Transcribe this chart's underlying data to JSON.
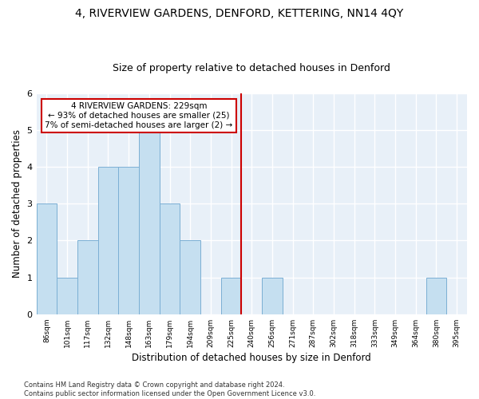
{
  "title": "4, RIVERVIEW GARDENS, DENFORD, KETTERING, NN14 4QY",
  "subtitle": "Size of property relative to detached houses in Denford",
  "xlabel": "Distribution of detached houses by size in Denford",
  "ylabel": "Number of detached properties",
  "categories": [
    "86sqm",
    "101sqm",
    "117sqm",
    "132sqm",
    "148sqm",
    "163sqm",
    "179sqm",
    "194sqm",
    "209sqm",
    "225sqm",
    "240sqm",
    "256sqm",
    "271sqm",
    "287sqm",
    "302sqm",
    "318sqm",
    "333sqm",
    "349sqm",
    "364sqm",
    "380sqm",
    "395sqm"
  ],
  "values": [
    3,
    1,
    2,
    4,
    4,
    5,
    3,
    2,
    0,
    1,
    0,
    1,
    0,
    0,
    0,
    0,
    0,
    0,
    0,
    1,
    0
  ],
  "bar_color": "#c5dff0",
  "bar_edge_color": "#7bafd4",
  "vline_color": "#cc0000",
  "annotation_line1": "4 RIVERVIEW GARDENS: 229sqm",
  "annotation_line2": "← 93% of detached houses are smaller (25)",
  "annotation_line3": "7% of semi-detached houses are larger (2) →",
  "annotation_box_color": "#cc0000",
  "ylim": [
    0,
    6
  ],
  "yticks": [
    0,
    1,
    2,
    3,
    4,
    5,
    6
  ],
  "background_color": "#e8f0f8",
  "footer_text": "Contains HM Land Registry data © Crown copyright and database right 2024.\nContains public sector information licensed under the Open Government Licence v3.0.",
  "title_fontsize": 10,
  "subtitle_fontsize": 9,
  "xlabel_fontsize": 8.5,
  "ylabel_fontsize": 8.5
}
